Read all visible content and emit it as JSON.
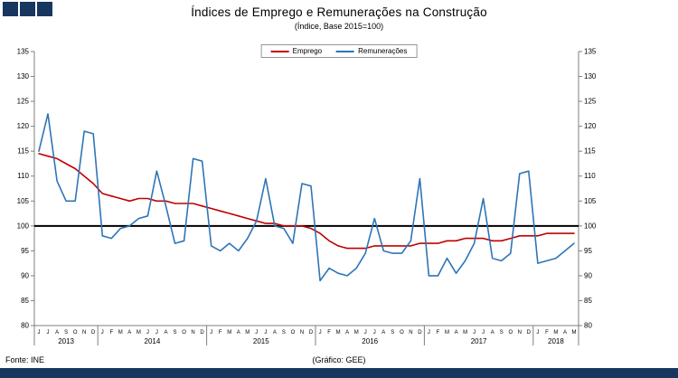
{
  "header": {
    "title": "Índices de Emprego e Remunerações na Construção",
    "subtitle": "(Índice, Base 2015=100)"
  },
  "footer": {
    "source": "Fonte: INE",
    "credit": "(Gráfico: GEE)"
  },
  "colors": {
    "emprego_line": "#c00000",
    "remuneracoes_line": "#2e75b6",
    "reference_line": "#000000",
    "axis": "#7f7f7f",
    "brand_bar": "#17375e"
  },
  "chart_data": {
    "type": "line",
    "title": "Índices de Emprego e Remunerações na Construção",
    "subtitle": "(Índice, Base 2015=100)",
    "xlabel": "",
    "ylabel": "",
    "ylim": [
      80,
      135
    ],
    "ytick_step": 5,
    "yticks": [
      80,
      85,
      90,
      95,
      100,
      105,
      110,
      115,
      120,
      125,
      130,
      135
    ],
    "reference_value": 100,
    "grid": false,
    "legend_position": "top-center",
    "x_labels": [
      "J",
      "J",
      "A",
      "S",
      "O",
      "N",
      "D",
      "J",
      "F",
      "M",
      "A",
      "M",
      "J",
      "J",
      "A",
      "S",
      "O",
      "N",
      "D",
      "J",
      "F",
      "M",
      "A",
      "M",
      "J",
      "J",
      "A",
      "S",
      "O",
      "N",
      "D",
      "J",
      "F",
      "M",
      "A",
      "M",
      "J",
      "J",
      "A",
      "S",
      "O",
      "N",
      "D",
      "J",
      "F",
      "M",
      "A",
      "M",
      "J",
      "J",
      "A",
      "S",
      "O",
      "N",
      "D",
      "J",
      "F",
      "M",
      "A",
      "M"
    ],
    "years": [
      {
        "label": "2013",
        "count": 7
      },
      {
        "label": "2014",
        "count": 12
      },
      {
        "label": "2015",
        "count": 12
      },
      {
        "label": "2016",
        "count": 12
      },
      {
        "label": "2017",
        "count": 12
      },
      {
        "label": "2018",
        "count": 5
      }
    ],
    "series": [
      {
        "name": "Emprego",
        "color": "#c00000",
        "values": [
          114.5,
          114,
          113.5,
          112.5,
          111.5,
          110,
          108.5,
          106.5,
          106,
          105.5,
          105,
          105.5,
          105.5,
          105,
          105,
          104.5,
          104.5,
          104.5,
          104,
          103.5,
          103,
          102.5,
          102,
          101.5,
          101,
          100.5,
          100.5,
          100,
          100,
          100,
          99.5,
          98.5,
          97,
          96,
          95.5,
          95.5,
          95.5,
          96,
          96,
          96,
          96,
          96,
          96.5,
          96.5,
          96.5,
          97,
          97,
          97.5,
          97.5,
          97.5,
          97,
          97,
          97.5,
          98,
          98,
          98,
          98.5,
          98.5,
          98.5,
          98.5
        ]
      },
      {
        "name": "Remunerações",
        "color": "#2e75b6",
        "values": [
          115,
          122.5,
          109,
          105,
          105,
          119,
          118.5,
          98,
          97.5,
          99.5,
          100,
          101.5,
          102,
          111,
          104,
          96.5,
          97,
          113.5,
          113,
          96,
          95,
          96.5,
          95,
          97.5,
          101,
          109.5,
          100,
          99.5,
          96.5,
          108.5,
          108,
          89,
          91.5,
          90.5,
          90,
          91.5,
          94.5,
          101.5,
          95,
          94.5,
          94.5,
          97,
          109.5,
          90,
          90,
          93.5,
          90.5,
          93,
          96.5,
          105.5,
          93.5,
          93,
          94.5,
          110.5,
          111,
          92.5,
          93,
          93.5,
          95,
          96.5
        ]
      }
    ]
  }
}
